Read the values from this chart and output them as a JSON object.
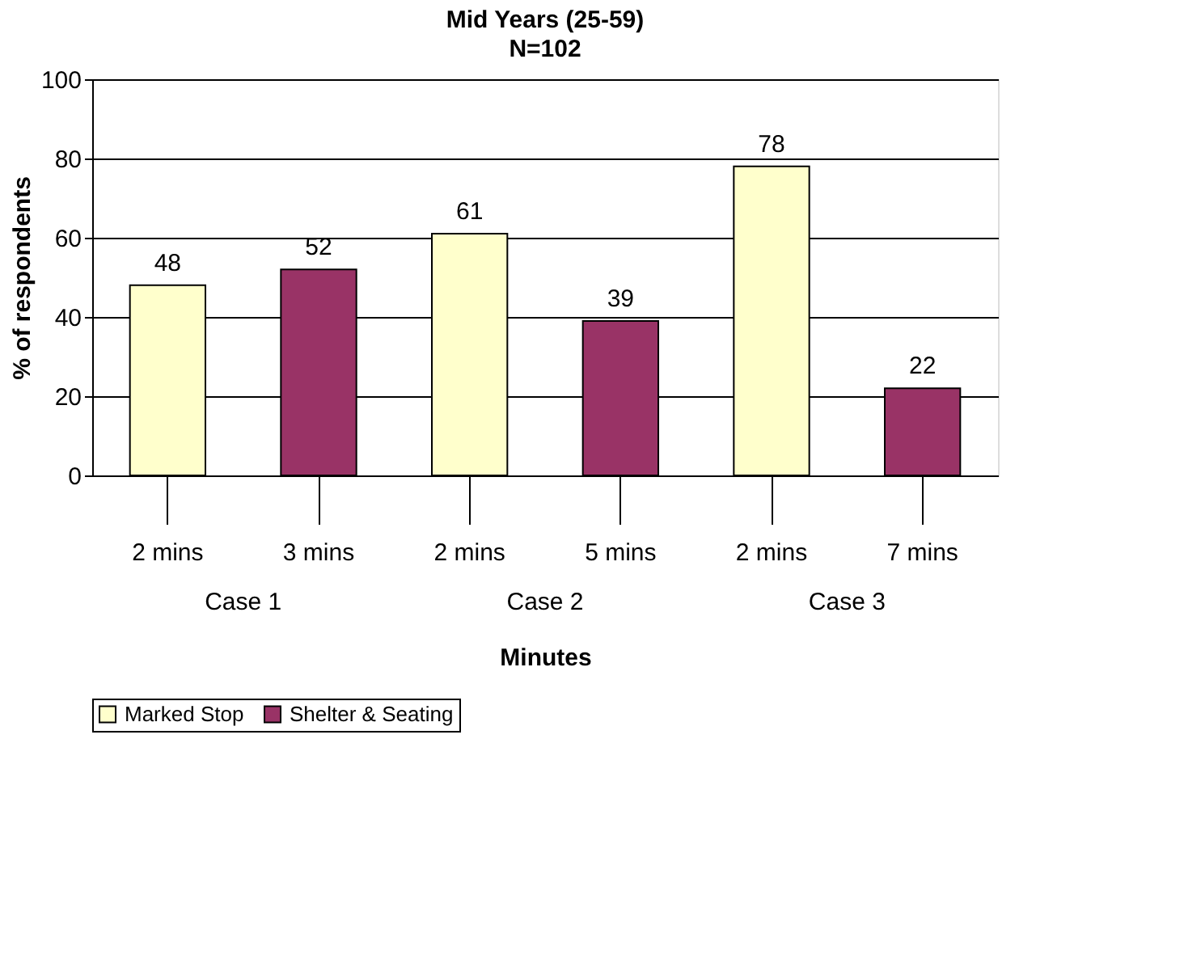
{
  "chart_data": {
    "type": "bar",
    "title": "Mid Years (25-59)",
    "subtitle": "N=102",
    "xlabel": "Minutes",
    "ylabel": "% of respondents",
    "categories": [
      "2 mins",
      "3 mins",
      "2 mins",
      "5 mins",
      "2 mins",
      "7 mins"
    ],
    "series": [
      {
        "name": "Marked Stop",
        "color": "#ffffcc",
        "values": [
          48,
          null,
          61,
          null,
          78,
          null
        ]
      },
      {
        "name": "Shelter & Seating",
        "color": "#993366",
        "values": [
          null,
          52,
          null,
          39,
          null,
          22
        ]
      }
    ],
    "annotations": [
      "Case 1",
      "Case 2",
      "Case 3"
    ],
    "ylim": [
      0,
      100
    ],
    "yticks": [
      0,
      20,
      40,
      60,
      80,
      100
    ],
    "grid": "y",
    "legend": "bottom",
    "data_labels": true
  }
}
